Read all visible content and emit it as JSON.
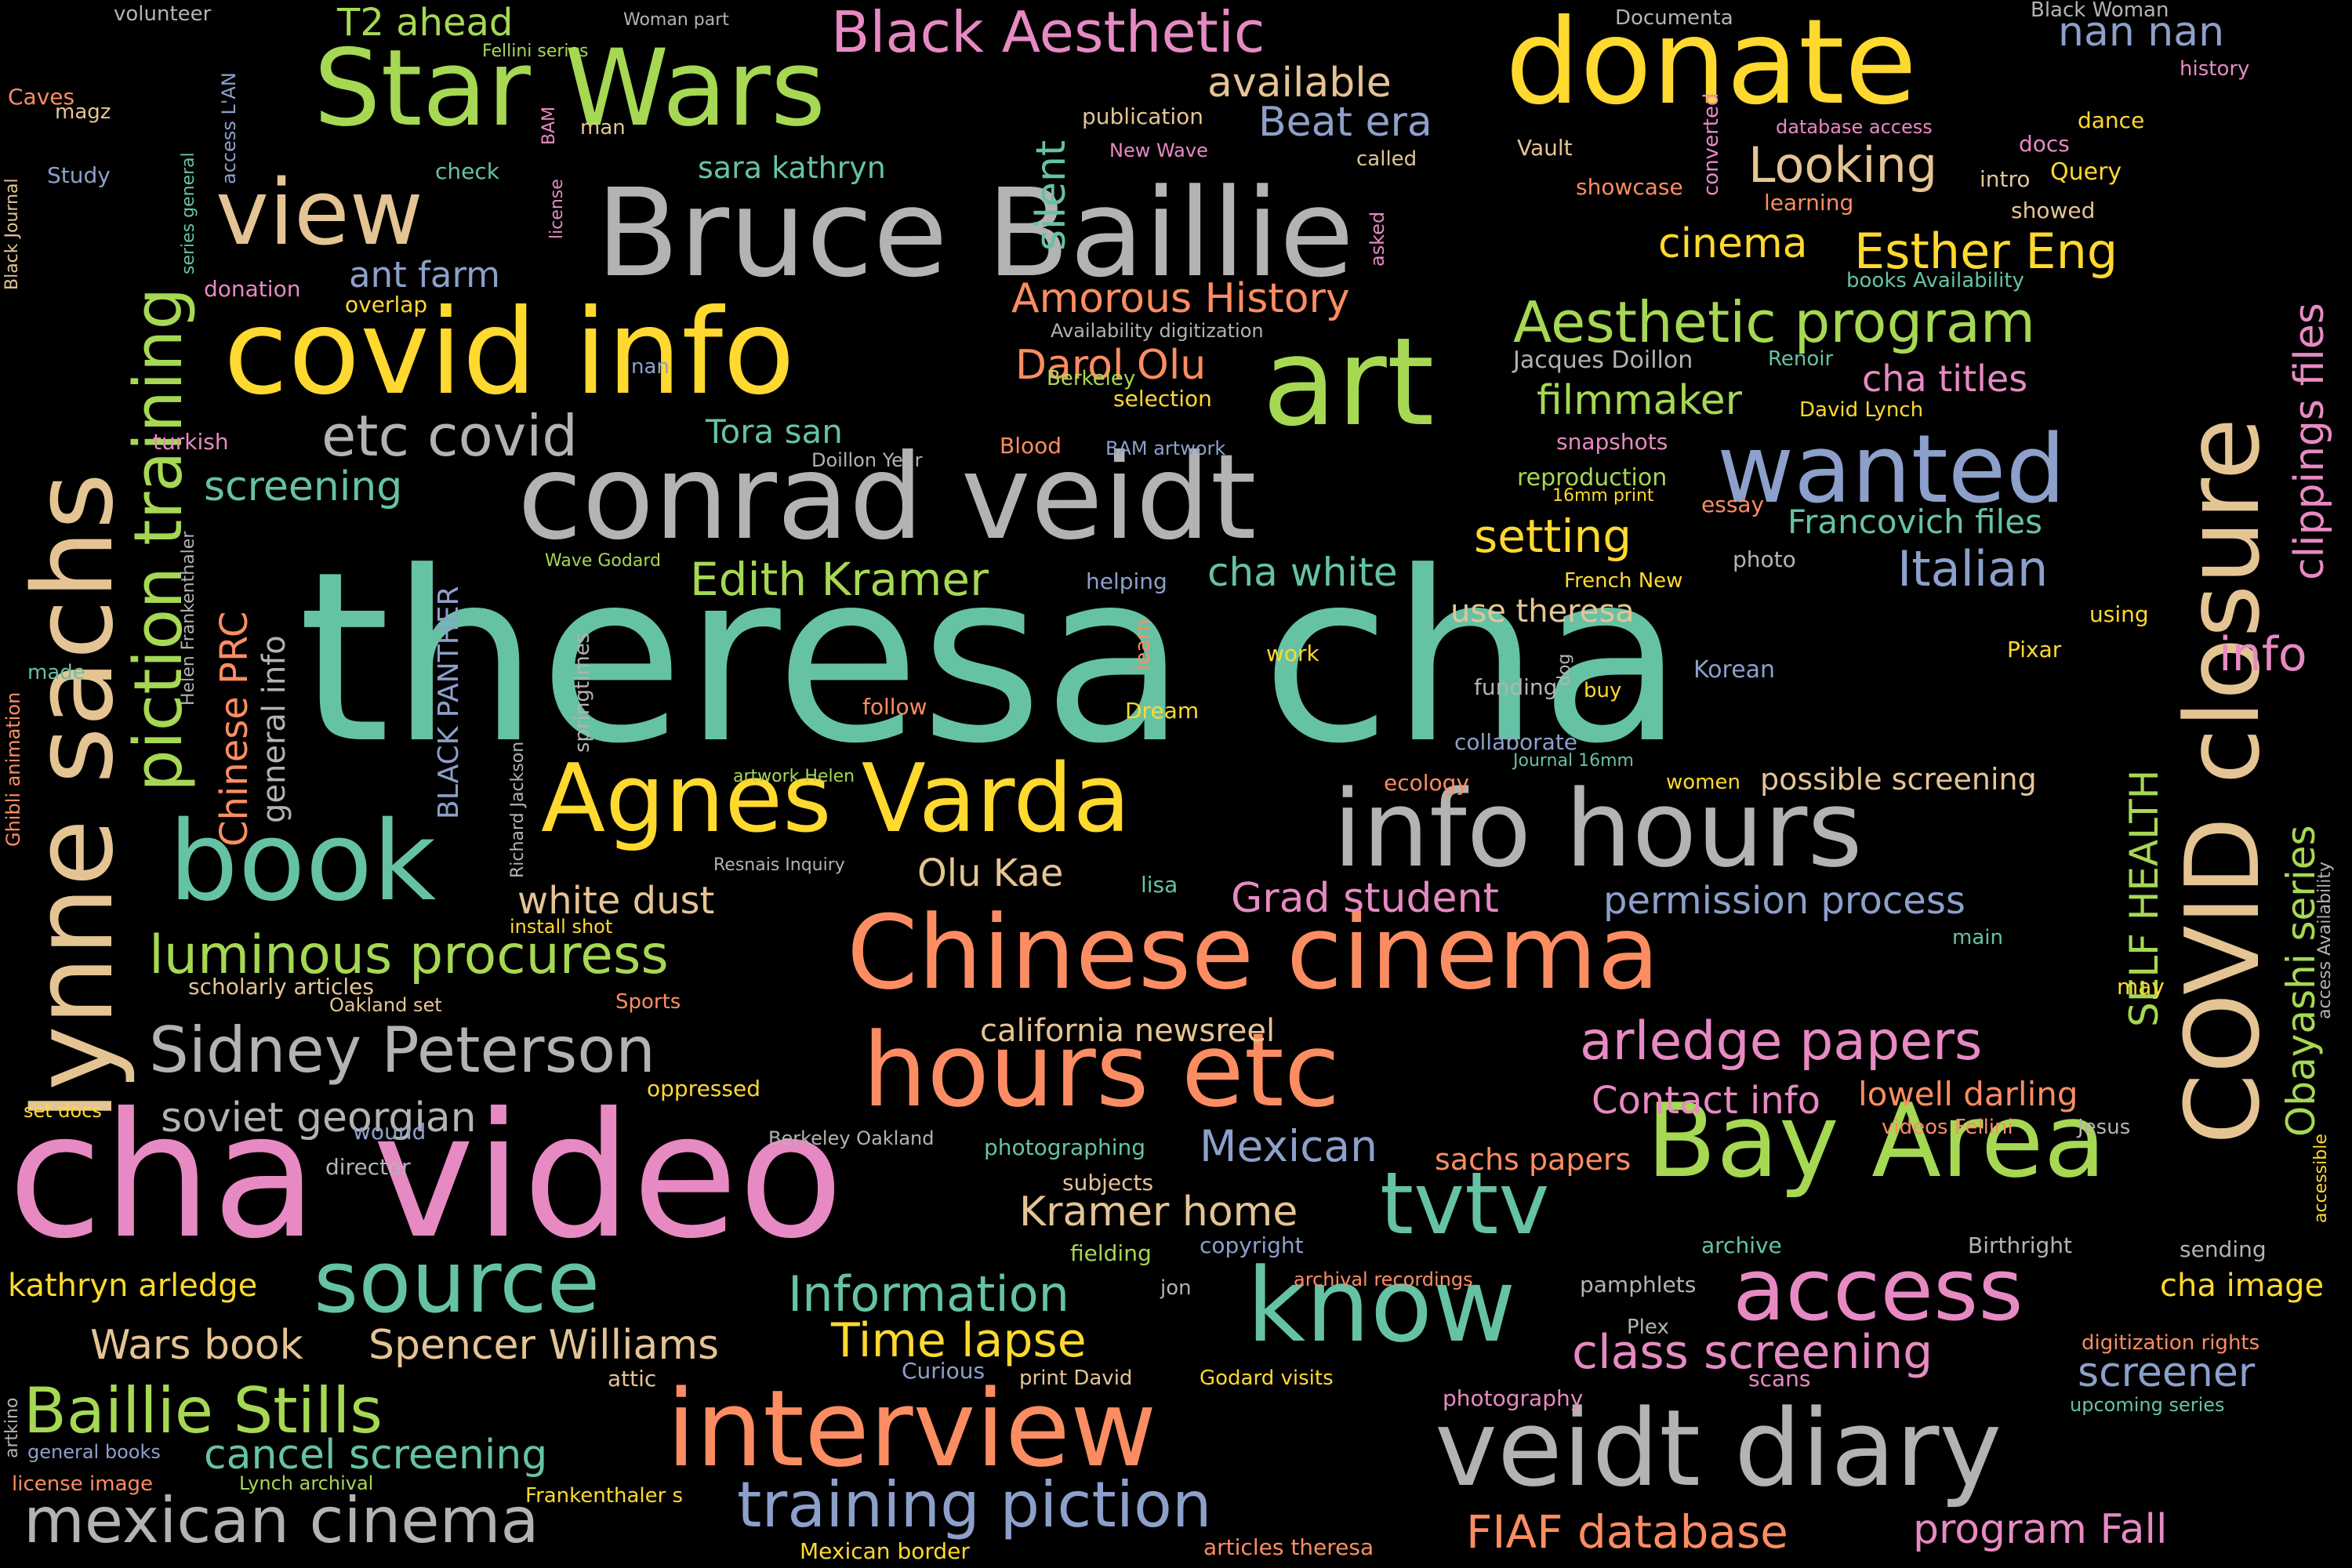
{
  "palette": {
    "g1": "#66c2a5",
    "g2": "#fc8d62",
    "g3": "#8da0cb",
    "g4": "#e78ac3",
    "g5": "#a6d854",
    "g6": "#ffd92f",
    "g7": "#e5c494",
    "g8": "#b3b3b3",
    "background": "#000000"
  },
  "words": [
    "theresa cha",
    "cha video",
    "conrad veidt",
    "Bruce Baillie",
    "covid info",
    "art",
    "donate",
    "Star Wars",
    "view",
    "lynne sachs",
    "piction training",
    "COVID closure",
    "info hours",
    "Agnes Varda",
    "book",
    "Chinese cinema",
    "hours etc",
    "interview",
    "veidt diary",
    "Bay Area",
    "know",
    "source",
    "access",
    "wanted",
    "tvtv",
    "Sidney Peterson",
    "mexican cinema",
    "training piction",
    "Baillie Stills",
    "Black Aesthetic",
    "Aesthetic program",
    "etc covid",
    "Edith Kramer",
    "Information",
    "Looking",
    "Esther Eng",
    "cinema",
    "arledge papers",
    "Italian",
    "luminous procuress",
    "FIAF database",
    "cha white",
    "class screening",
    "Time lapse",
    "Obayashi series",
    "clippings files",
    "info",
    "SELF HEALTH",
    "Chinese PRC",
    "screening",
    "filmmaker",
    "setting",
    "Amorous History",
    "Darol Olu",
    "soviet georgian",
    "Kramer home",
    "Wars book",
    "Spencer Williams",
    "cancel screening",
    "program Fall",
    "screener",
    "Contact info",
    "lowell darling",
    "Mexican",
    "Grad student",
    "silent",
    "permission process",
    "available",
    "Beat era",
    "nan nan",
    "white dust",
    "Olu Kae",
    "california newsreel",
    "cha titles",
    "Francovich files",
    "use theresa",
    "ant farm",
    "T2 ahead",
    "general info",
    "BLACK PANTHER",
    "cha image",
    "sara kathryn",
    "kathryn arledge",
    "sachs papers",
    "Tora san",
    "possible screening",
    "Jacques Doillon",
    "volunteer",
    "Woman part",
    "Documenta",
    "Black Woman",
    "Fellini series",
    "magz",
    "Caves",
    "access L'AN",
    "man",
    "BAM",
    "license",
    "history",
    "publication",
    "New Wave",
    "database access",
    "converted",
    "dance",
    "Study",
    "check",
    "Vault",
    "docs",
    "intro",
    "Query",
    "showcase",
    "learning",
    "showed",
    "called",
    "asked",
    "Black Journal",
    "series general",
    "donation",
    "overlap",
    "books Availability",
    "Availability digitization",
    "nan",
    "Renoir",
    "Berkeley",
    "selection",
    "David Lynch",
    "turkish",
    "Blood",
    "BAM artwork",
    "Doillon Year",
    "snapshots",
    "reproduction",
    "16mm print",
    "essay",
    "Helen Frankenthaler",
    "Wave Godard",
    "helping",
    "French New",
    "photo",
    "using",
    "work",
    "learn",
    "dog",
    "Pixar",
    "Ghibli animation",
    "made",
    "follow",
    "Dream",
    "funding",
    "buy",
    "Korean",
    "springtimes",
    "Richard Jackson",
    "collaborate",
    "Journal 16mm",
    "artwork Helen",
    "ecology",
    "women",
    "Resnais Inquiry",
    "lisa",
    "accessible",
    "access Availability",
    "install shot",
    "main",
    "scholarly articles",
    "Oakland set",
    "Sports",
    "may",
    "oppressed",
    "set docs",
    "Berkeley Oakland",
    "photographing",
    "videos Fellini",
    "Jesus",
    "wound",
    "subjects",
    "director",
    "fielding",
    "copyright",
    "archive",
    "Birthright",
    "sending",
    "jon",
    "archival recordings",
    "pamphlets",
    "Plex",
    "digitization rights",
    "artkino",
    "attic",
    "Curious",
    "print David",
    "Godard visits",
    "scans",
    "photography",
    "upcoming series",
    "general books",
    "license image",
    "Lynch archival",
    "Frankenthaler s",
    "Mexican border",
    "articles theresa"
  ]
}
